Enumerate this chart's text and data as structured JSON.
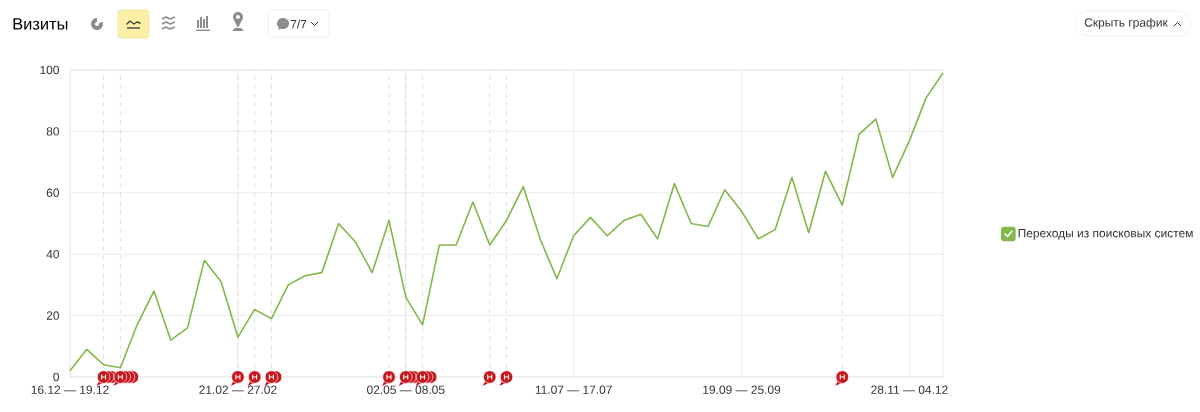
{
  "chart_data": {
    "type": "line",
    "title": "Визиты",
    "categories": [
      "16.12 — 19.12",
      null,
      null,
      null,
      null,
      null,
      null,
      null,
      null,
      null,
      "21.02 — 27.02",
      null,
      null,
      null,
      null,
      null,
      null,
      null,
      null,
      null,
      "02.05 — 08.05",
      null,
      null,
      null,
      null,
      null,
      null,
      null,
      null,
      null,
      "11.07 — 17.07",
      null,
      null,
      null,
      null,
      null,
      null,
      null,
      null,
      null,
      "19.09 — 25.09",
      null,
      null,
      null,
      null,
      null,
      null,
      null,
      null,
      null,
      "28.11 — 04.12",
      null,
      null
    ],
    "series": [
      {
        "name": "Переходы из поисковых систем",
        "color": "#82b74b",
        "values": [
          2,
          9,
          4,
          3,
          17,
          28,
          12,
          16,
          38,
          31,
          13,
          22,
          19,
          30,
          33,
          34,
          50,
          44,
          34,
          51,
          26,
          17,
          43,
          43,
          57,
          43,
          51,
          62,
          45,
          32,
          46,
          52,
          46,
          51,
          53,
          45,
          63,
          50,
          49,
          61,
          54,
          45,
          48,
          65,
          47,
          67,
          56,
          79,
          84,
          65,
          77,
          91,
          99
        ]
      }
    ],
    "ylim": [
      0,
      100
    ],
    "yticks": [
      0,
      20,
      40,
      60,
      80,
      100
    ],
    "grid": true,
    "legend": "right",
    "annotations": [
      "7/7",
      "Скрыть график"
    ]
  }
}
